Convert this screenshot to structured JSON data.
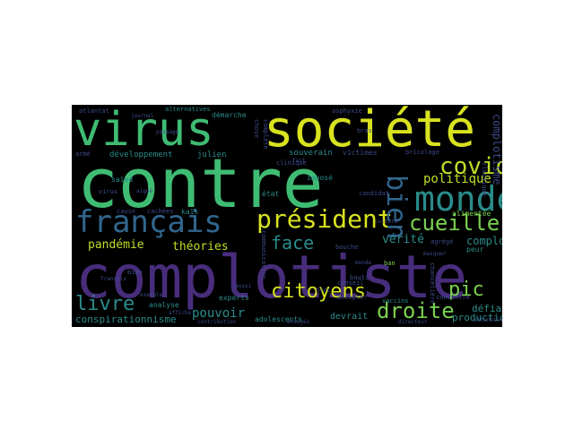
{
  "palette": {
    "yellow": "#d8e21f",
    "green": "#3fbc73",
    "teal": "#2a8c8b",
    "blue": "#31668d",
    "indigo": "#3e4a89",
    "purple": "#472d7b",
    "lime": "#7ad151",
    "bright": "#bddf26"
  },
  "words": [
    {
      "text": "virus",
      "color": "green"
    },
    {
      "text": "société",
      "color": "yellow"
    },
    {
      "text": "contre",
      "color": "green"
    },
    {
      "text": "complotiste",
      "color": "purple"
    },
    {
      "text": "monde",
      "color": "teal"
    },
    {
      "text": "français",
      "color": "blue"
    },
    {
      "text": "président",
      "color": "yellow"
    },
    {
      "text": "covid",
      "color": "bright"
    },
    {
      "text": "bien",
      "color": "blue"
    },
    {
      "text": "cueille",
      "color": "lime"
    },
    {
      "text": "politique",
      "color": "bright"
    },
    {
      "text": "face",
      "color": "teal"
    },
    {
      "text": "citoyens",
      "color": "yellow"
    },
    {
      "text": "droite",
      "color": "lime"
    },
    {
      "text": "livre",
      "color": "teal"
    },
    {
      "text": "pouvoir",
      "color": "teal"
    },
    {
      "text": "pandémie",
      "color": "bright"
    },
    {
      "text": "théories",
      "color": "bright"
    },
    {
      "text": "vérité",
      "color": "teal"
    },
    {
      "text": "complot",
      "color": "teal"
    },
    {
      "text": "pic",
      "color": "lime"
    },
    {
      "text": "défiance",
      "color": "teal"
    },
    {
      "text": "production",
      "color": "teal"
    },
    {
      "text": "conspirationnisme",
      "color": "teal"
    },
    {
      "text": "complotisme",
      "color": "indigo"
    },
    {
      "text": "analyse",
      "color": "teal"
    },
    {
      "text": "experts",
      "color": "teal"
    },
    {
      "text": "devrait",
      "color": "teal"
    },
    {
      "text": "adolescents",
      "color": "teal"
    },
    {
      "text": "développement",
      "color": "teal"
    },
    {
      "text": "julien",
      "color": "teal"
    },
    {
      "text": "souverain",
      "color": "teal"
    },
    {
      "text": "victimes",
      "color": "indigo"
    },
    {
      "text": "démarche",
      "color": "teal"
    },
    {
      "text": "alternatives",
      "color": "teal"
    },
    {
      "text": "atlantat",
      "color": "indigo"
    },
    {
      "text": "asphyxie",
      "color": "indigo"
    },
    {
      "text": "imposé",
      "color": "teal"
    },
    {
      "text": "état",
      "color": "teal"
    },
    {
      "text": "kaïs",
      "color": "teal"
    },
    {
      "text": "saïed",
      "color": "teal"
    },
    {
      "text": "cachées",
      "color": "indigo"
    },
    {
      "text": "armé",
      "color": "indigo"
    },
    {
      "text": "accepter",
      "color": "indigo"
    },
    {
      "text": "alimentée",
      "color": "lime"
    },
    {
      "text": "peur",
      "color": "teal"
    },
    {
      "text": "classique",
      "color": "indigo"
    },
    {
      "text": "vaccins",
      "color": "teal"
    },
    {
      "text": "conseil",
      "color": "indigo"
    },
    {
      "text": "chancelière",
      "color": "indigo"
    },
    {
      "text": "concentre",
      "color": "indigo"
    },
    {
      "text": "bien",
      "color": "indigo"
    },
    {
      "text": "communication",
      "color": "indigo"
    },
    {
      "text": "clinique",
      "color": "indigo"
    },
    {
      "text": "candidat",
      "color": "indigo"
    },
    {
      "text": "bricolage",
      "color": "indigo"
    },
    {
      "text": "bras",
      "color": "indigo"
    },
    {
      "text": "chose",
      "color": "indigo"
    },
    {
      "text": "complète",
      "color": "indigo"
    },
    {
      "text": "ban",
      "color": "lime"
    },
    {
      "text": "bauti",
      "color": "indigo"
    },
    {
      "text": "agrégé",
      "color": "indigo"
    },
    {
      "text": "bloc",
      "color": "indigo"
    },
    {
      "text": "bouche",
      "color": "indigo"
    },
    {
      "text": "culture",
      "color": "indigo"
    },
    {
      "text": "passage",
      "color": "indigo"
    },
    {
      "text": "journal",
      "color": "indigo"
    },
    {
      "text": "cause",
      "color": "indigo"
    },
    {
      "text": "virus",
      "color": "indigo"
    },
    {
      "text": "aiguë",
      "color": "indigo"
    },
    {
      "text": "attention",
      "color": "indigo"
    },
    {
      "text": "directeur",
      "color": "indigo"
    },
    {
      "text": "contribution",
      "color": "indigo"
    },
    {
      "text": "envoyés",
      "color": "indigo"
    },
    {
      "text": "affiche",
      "color": "indigo"
    },
    {
      "text": "exemple",
      "color": "indigo"
    },
    {
      "text": "francais",
      "color": "indigo"
    },
    {
      "text": "aussi",
      "color": "indigo"
    },
    {
      "text": "fait",
      "color": "indigo"
    },
    {
      "text": "masquer",
      "color": "indigo"
    },
    {
      "text": "monde",
      "color": "indigo"
    }
  ]
}
